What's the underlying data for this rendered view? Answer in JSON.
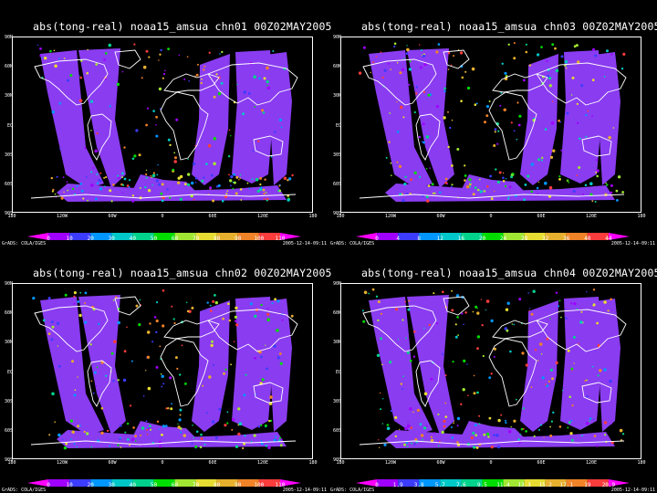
{
  "panels": [
    {
      "title": "abs(tong-real) noaa15_amsua chn01 00Z02MAY2005",
      "colorbar_labels": [
        "0",
        "10",
        "20",
        "30",
        "40",
        "50",
        "60",
        "70",
        "80",
        "90",
        "100",
        "110"
      ]
    },
    {
      "title": "abs(tong-real) noaa15_amsua chn03 00Z02MAY2005",
      "colorbar_labels": [
        "0",
        "4",
        "8",
        "12",
        "16",
        "20",
        "24",
        "28",
        "32",
        "36",
        "40",
        "44"
      ]
    },
    {
      "title": "abs(tong-real) noaa15_amsua chn02 00Z02MAY2005",
      "colorbar_labels": [
        "0",
        "10",
        "20",
        "30",
        "40",
        "50",
        "60",
        "70",
        "80",
        "90",
        "100",
        "110"
      ]
    },
    {
      "title": "abs(tong-real) noaa15_amsua chn04 00Z02MAY2005",
      "colorbar_labels": [
        "0",
        "1.9",
        "3.8",
        "5.7",
        "7.6",
        "9.5",
        "11.4",
        "13.3",
        "15.2",
        "17.1",
        "19",
        "20.9"
      ]
    }
  ],
  "y_ticks": [
    "90N",
    "60N",
    "30N",
    "EQ",
    "30S",
    "60S",
    "90S"
  ],
  "x_ticks": [
    "180",
    "120W",
    "60W",
    "0",
    "60E",
    "120E",
    "180"
  ],
  "footer_left": "GrADS: COLA/IGES",
  "footer_right": "2005-12-14-09:11",
  "colors": {
    "background": "#000000",
    "swath": "#8a3cf0",
    "colorbar": [
      "#ff00ff",
      "#a000ff",
      "#3c3cff",
      "#0096ff",
      "#00c8c8",
      "#00d28c",
      "#00dc00",
      "#a0e632",
      "#e6dc32",
      "#e6af2d",
      "#f08228",
      "#fa3c3c",
      "#ff00ff"
    ],
    "coast": "#ffffff"
  }
}
